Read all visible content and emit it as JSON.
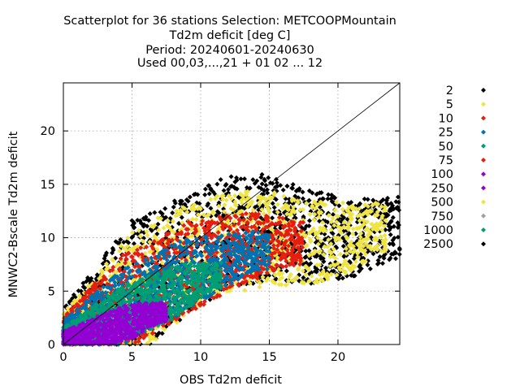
{
  "chart_data": {
    "type": "scatter",
    "title": [
      "Scatterplot for   36 stations Selection: METCOOPMountain",
      "Td2m deficit [deg C]",
      "Period: 20240601-20240630",
      "Used 00,03,...,21 + 01 02 ... 12"
    ],
    "xlabel": "OBS Td2m deficit",
    "ylabel": "MNWC2-Bscale Td2m deficit",
    "xlim": [
      0,
      24.5
    ],
    "ylim": [
      0,
      24.5
    ],
    "xticks": [
      "0",
      "5",
      "10",
      "15",
      "20"
    ],
    "yticks": [
      "0",
      "5",
      "10",
      "15",
      "20"
    ],
    "grid": true,
    "diagonal_line": true,
    "legend_position": "right-outside",
    "series": [
      {
        "name": "2",
        "color": "#000000"
      },
      {
        "name": "5",
        "color": "#f0e442"
      },
      {
        "name": "10",
        "color": "#e51e10"
      },
      {
        "name": "25",
        "color": "#0072b2"
      },
      {
        "name": "50",
        "color": "#009e73"
      },
      {
        "name": "75",
        "color": "#e51e10"
      },
      {
        "name": "100",
        "color": "#9400d3"
      },
      {
        "name": "250",
        "color": "#9400d3"
      },
      {
        "name": "500",
        "color": "#f0e442"
      },
      {
        "name": "750",
        "color": "#a0a0a0"
      },
      {
        "name": "1000",
        "color": "#009e73"
      },
      {
        "name": "2500",
        "color": "#000000"
      }
    ],
    "density_bands": [
      {
        "color": "#000000",
        "center": [
          [
            0,
            1
          ],
          [
            3,
            3.5
          ],
          [
            6,
            6
          ],
          [
            9,
            8.5
          ],
          [
            12,
            10.5
          ],
          [
            15,
            11
          ],
          [
            18,
            10
          ],
          [
            21,
            10
          ],
          [
            24,
            11
          ]
        ],
        "halfwidth": [
          [
            0,
            2.5
          ],
          [
            5,
            6.5
          ],
          [
            10,
            5.5
          ],
          [
            15,
            5
          ],
          [
            20,
            4
          ],
          [
            24,
            3
          ]
        ],
        "xmax": 24.5
      },
      {
        "color": "#f0e442",
        "center": [
          [
            0,
            1
          ],
          [
            3,
            3
          ],
          [
            6,
            5.5
          ],
          [
            9,
            8
          ],
          [
            12,
            9.5
          ],
          [
            15,
            10
          ],
          [
            18,
            9.5
          ],
          [
            21,
            10
          ],
          [
            23,
            11
          ]
        ],
        "halfwidth": [
          [
            0,
            2
          ],
          [
            5,
            6
          ],
          [
            10,
            5
          ],
          [
            15,
            4.5
          ],
          [
            20,
            3.5
          ],
          [
            23,
            2.5
          ]
        ],
        "xmax": 23.5
      },
      {
        "color": "#e51e10",
        "center": [
          [
            0,
            1
          ],
          [
            3,
            3
          ],
          [
            6,
            5
          ],
          [
            9,
            7.2
          ],
          [
            12,
            8.5
          ],
          [
            15,
            9.5
          ],
          [
            17,
            9.5
          ]
        ],
        "halfwidth": [
          [
            0,
            1.6
          ],
          [
            4,
            4.5
          ],
          [
            9,
            4.3
          ],
          [
            13,
            3.5
          ],
          [
            17,
            2
          ]
        ],
        "xmax": 17.5
      },
      {
        "color": "#0072b2",
        "center": [
          [
            0,
            1
          ],
          [
            3,
            2.7
          ],
          [
            6,
            4.6
          ],
          [
            9,
            6.6
          ],
          [
            12,
            8
          ],
          [
            14,
            8.8
          ]
        ],
        "halfwidth": [
          [
            0,
            1.2
          ],
          [
            4,
            3.5
          ],
          [
            9,
            3.4
          ],
          [
            14,
            1.8
          ]
        ],
        "xmax": 15
      },
      {
        "color": "#009e73",
        "center": [
          [
            0,
            0.8
          ],
          [
            3,
            2.2
          ],
          [
            6,
            3.8
          ],
          [
            9,
            5.5
          ],
          [
            11,
            6.5
          ]
        ],
        "halfwidth": [
          [
            0,
            0.8
          ],
          [
            4,
            2.6
          ],
          [
            8,
            2.5
          ],
          [
            11,
            1.2
          ]
        ],
        "xmax": 11.5
      },
      {
        "color": "#9400d3",
        "center": [
          [
            0,
            0.6
          ],
          [
            3,
            1.4
          ],
          [
            5,
            2.2
          ],
          [
            7,
            3
          ]
        ],
        "halfwidth": [
          [
            0,
            0.6
          ],
          [
            3,
            1.5
          ],
          [
            5,
            1.7
          ],
          [
            7,
            0.9
          ]
        ],
        "xmax": 7.5
      }
    ]
  }
}
